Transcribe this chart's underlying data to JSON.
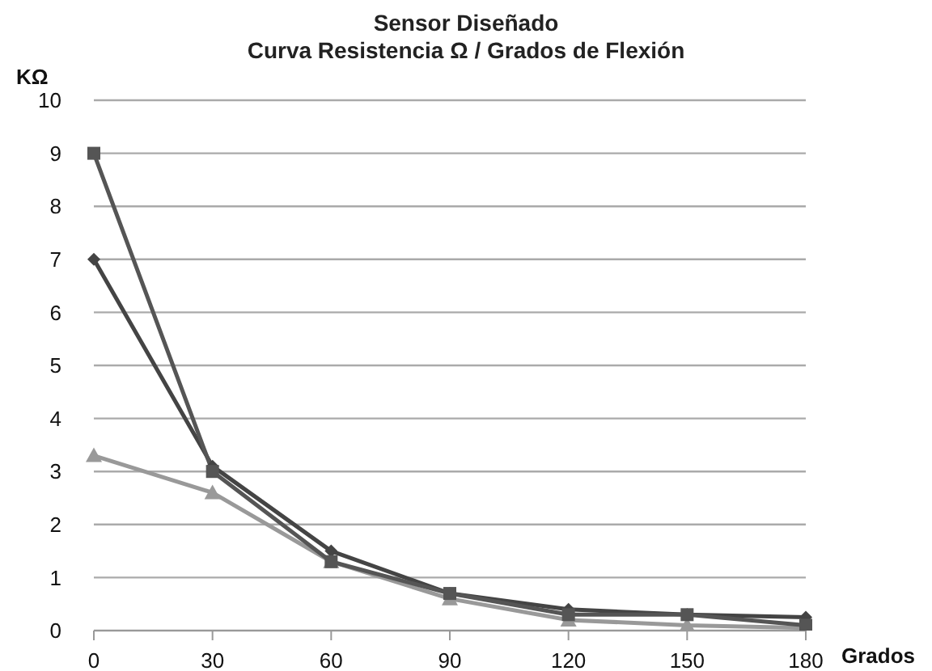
{
  "chart_data": {
    "type": "line",
    "title": "Sensor Diseñado\nCurva Resistencia Ω / Grados de Flexión",
    "xlabel": "Grados",
    "ylabel": "KΩ",
    "categories": [
      "0",
      "30",
      "60",
      "90",
      "120",
      "150",
      "180"
    ],
    "series": [
      {
        "color": "#555555",
        "marker": "square",
        "values": [
          9,
          3.0,
          1.3,
          0.7,
          0.3,
          0.3,
          0.1
        ]
      },
      {
        "color": "#444444",
        "marker": "diamond",
        "values": [
          7,
          3.1,
          1.5,
          0.7,
          0.4,
          0.3,
          0.25
        ]
      },
      {
        "color": "#999999",
        "marker": "triangle",
        "values": [
          3.3,
          2.6,
          1.3,
          0.6,
          0.2,
          0.1,
          0.05
        ]
      }
    ],
    "ylim": [
      0,
      10
    ],
    "yticks": [
      0,
      1,
      2,
      3,
      4,
      5,
      6,
      7,
      8,
      9,
      10
    ],
    "grid": "y",
    "line_style": "solid"
  }
}
